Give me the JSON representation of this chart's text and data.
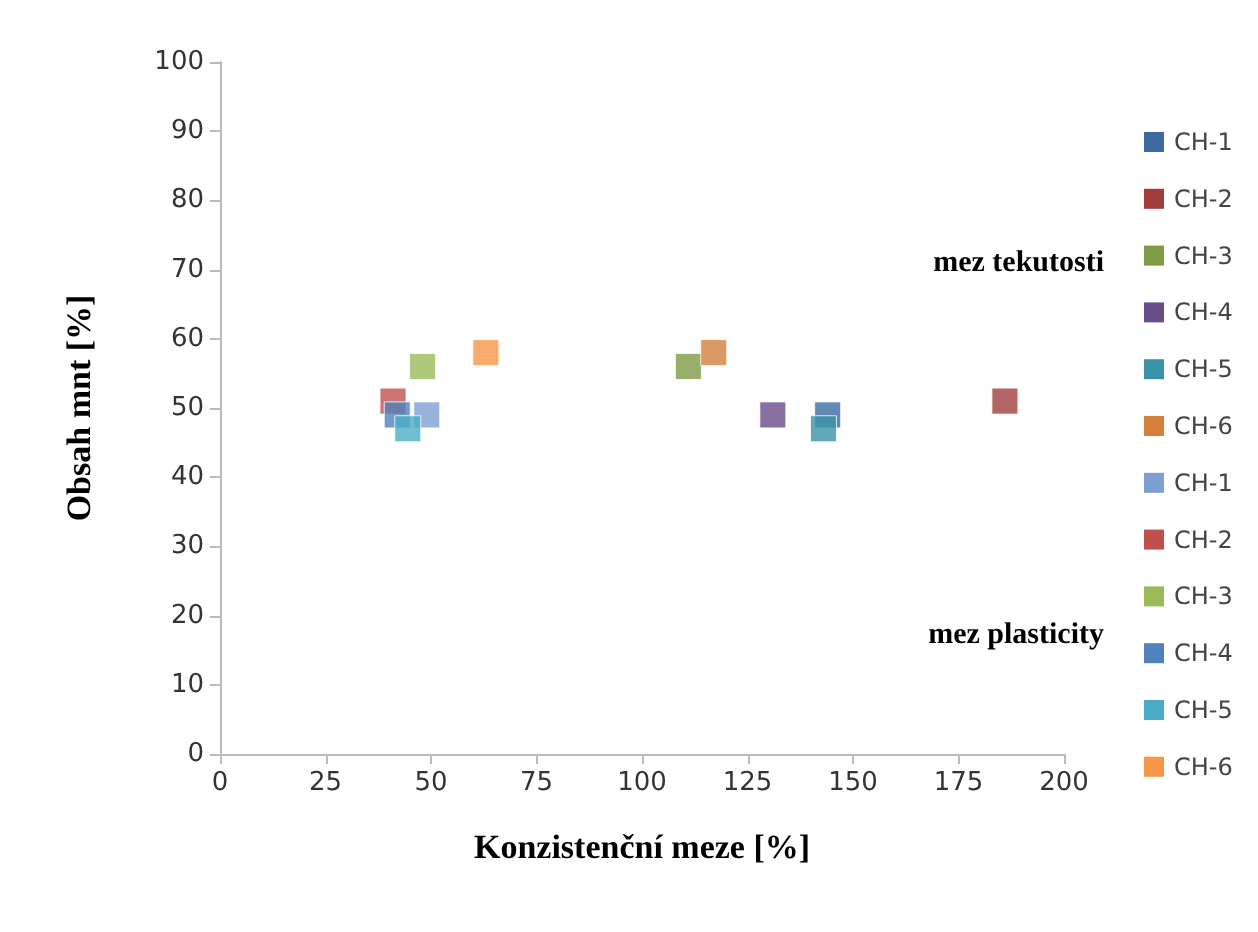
{
  "chart_data": {
    "type": "scatter",
    "xlabel": "Konzistenční meze [%]",
    "ylabel": "Obsah mnt [%]",
    "marker": "square",
    "grid": false,
    "legend": "right",
    "xlim": [
      0,
      200
    ],
    "xticks": [
      0,
      25,
      50,
      75,
      100,
      125,
      150,
      175,
      200
    ],
    "ylim": [
      0,
      100
    ],
    "yticks": [
      0,
      10,
      20,
      30,
      40,
      50,
      60,
      70,
      80,
      90,
      100
    ],
    "annotations": [
      "mez tekutosti",
      "mez plasticity"
    ],
    "series": [
      {
        "name": "CH-1",
        "color": "#3c6aa0",
        "x": [
          144
        ],
        "values": [
          49
        ]
      },
      {
        "name": "CH-2",
        "color": "#a33d3d",
        "x": [
          186
        ],
        "values": [
          51
        ]
      },
      {
        "name": "CH-3",
        "color": "#7f9a45",
        "x": [
          111
        ],
        "values": [
          56
        ]
      },
      {
        "name": "CH-4",
        "color": "#6a4e8b",
        "x": [
          131
        ],
        "values": [
          49
        ]
      },
      {
        "name": "CH-5",
        "color": "#3a92a6",
        "x": [
          143
        ],
        "values": [
          47
        ]
      },
      {
        "name": "CH-6",
        "color": "#d5803a",
        "x": [
          117
        ],
        "values": [
          58
        ]
      },
      {
        "name": "CH-1",
        "color": "#7f9fd0",
        "x": [
          49
        ],
        "values": [
          49
        ]
      },
      {
        "name": "CH-2",
        "color": "#c0504d",
        "x": [
          41
        ],
        "values": [
          51
        ]
      },
      {
        "name": "CH-3",
        "color": "#9bbb59",
        "x": [
          48
        ],
        "values": [
          56
        ]
      },
      {
        "name": "CH-4",
        "color": "#4f81bd",
        "x": [
          42
        ],
        "values": [
          49
        ]
      },
      {
        "name": "CH-5",
        "color": "#4bacc6",
        "x": [
          44.5
        ],
        "values": [
          47
        ]
      },
      {
        "name": "CH-6",
        "color": "#f79646",
        "x": [
          63
        ],
        "values": [
          58
        ]
      }
    ]
  }
}
